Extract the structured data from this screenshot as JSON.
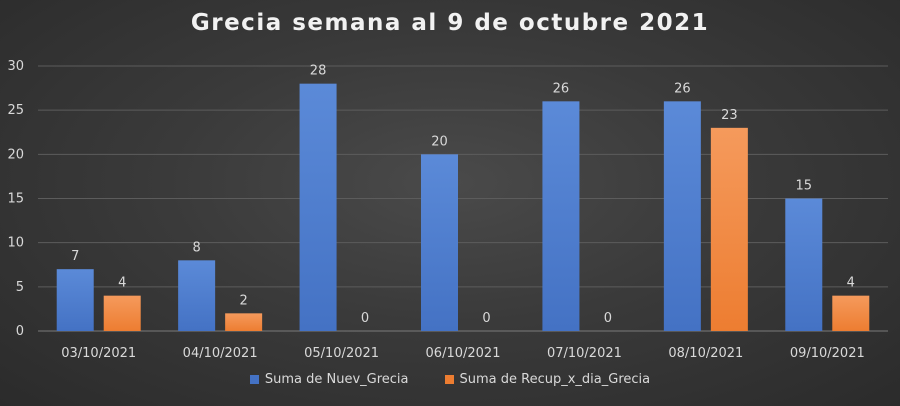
{
  "chart_data": {
    "type": "bar",
    "title": "Grecia semana al 9 de octubre 2021",
    "xlabel": "",
    "ylabel": "",
    "categories": [
      "03/10/2021",
      "04/10/2021",
      "05/10/2021",
      "06/10/2021",
      "07/10/2021",
      "08/10/2021",
      "09/10/2021"
    ],
    "series": [
      {
        "name": "Suma de Nuev_Grecia",
        "values": [
          7,
          8,
          28,
          20,
          26,
          26,
          15
        ],
        "color": "#4472c4"
      },
      {
        "name": "Suma de Recup_x_dia_Grecia",
        "values": [
          4,
          2,
          0,
          0,
          0,
          23,
          4
        ],
        "color": "#ed7d31"
      }
    ],
    "ylim": [
      0,
      30
    ],
    "yticks": [
      0,
      5,
      10,
      15,
      20,
      25,
      30
    ],
    "grid": true,
    "legend_position": "bottom",
    "data_labels": true
  }
}
